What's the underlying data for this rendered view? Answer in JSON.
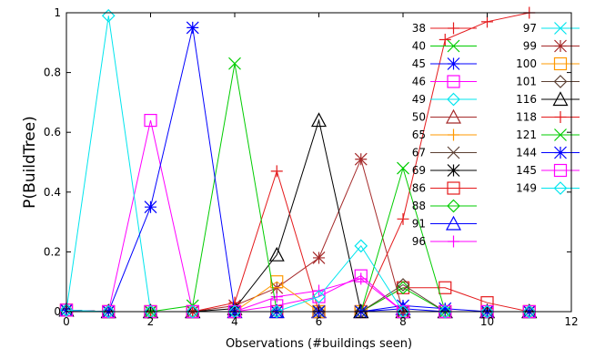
{
  "chart_data": {
    "type": "line",
    "xlabel": "Observations (#buildings seen)",
    "ylabel": "P(BuildTree)",
    "xlim": [
      0,
      12
    ],
    "ylim": [
      0,
      1
    ],
    "x_ticks": [
      "0",
      "2",
      "4",
      "6",
      "8",
      "10",
      "12"
    ],
    "y_ticks": [
      "0",
      "0.2",
      "0.4",
      "0.6",
      "0.8",
      "1"
    ],
    "grid": false,
    "legend_position": "top-right",
    "legend_rows": 13,
    "series": [
      {
        "name": "38",
        "color": "#e41a1c",
        "marker": "plus",
        "points": [
          [
            0,
            0.005
          ],
          [
            1,
            0
          ],
          [
            2,
            0
          ],
          [
            3,
            0
          ],
          [
            4,
            0
          ],
          [
            5,
            0
          ],
          [
            6,
            0
          ],
          [
            7,
            0
          ],
          [
            8,
            0
          ],
          [
            9,
            0
          ],
          [
            10,
            0
          ],
          [
            11,
            0
          ]
        ]
      },
      {
        "name": "40",
        "color": "#00cc00",
        "marker": "cross",
        "points": [
          [
            0,
            0.005
          ],
          [
            1,
            0
          ],
          [
            2,
            0
          ],
          [
            3,
            0
          ],
          [
            4,
            0
          ],
          [
            5,
            0
          ],
          [
            6,
            0
          ],
          [
            7,
            0
          ],
          [
            8,
            0
          ],
          [
            9,
            0
          ],
          [
            10,
            0
          ],
          [
            11,
            0
          ]
        ]
      },
      {
        "name": "45",
        "color": "#0000ff",
        "marker": "star",
        "points": [
          [
            0,
            0.005
          ],
          [
            1,
            0
          ],
          [
            2,
            0
          ],
          [
            3,
            0
          ],
          [
            4,
            0
          ],
          [
            5,
            0
          ],
          [
            6,
            0
          ],
          [
            7,
            0
          ],
          [
            8,
            0
          ],
          [
            9,
            0
          ],
          [
            10,
            0
          ],
          [
            11,
            0
          ]
        ]
      },
      {
        "name": "46",
        "color": "#ff00ff",
        "marker": "square",
        "points": [
          [
            0,
            0.005
          ],
          [
            1,
            0
          ],
          [
            2,
            0.64
          ],
          [
            3,
            0
          ],
          [
            4,
            0
          ],
          [
            5,
            0
          ],
          [
            6,
            0
          ],
          [
            7,
            0
          ],
          [
            8,
            0
          ],
          [
            9,
            0
          ],
          [
            10,
            0
          ],
          [
            11,
            0
          ]
        ]
      },
      {
        "name": "49",
        "color": "#00e5ee",
        "marker": "diamond",
        "points": [
          [
            0,
            0.005
          ],
          [
            1,
            0.99
          ],
          [
            2,
            0
          ],
          [
            3,
            0
          ],
          [
            4,
            0
          ],
          [
            5,
            0
          ],
          [
            6,
            0
          ],
          [
            7,
            0
          ],
          [
            8,
            0
          ],
          [
            9,
            0
          ],
          [
            10,
            0
          ],
          [
            11,
            0
          ]
        ]
      },
      {
        "name": "50",
        "color": "#a52a2a",
        "marker": "triangle",
        "points": [
          [
            0,
            0.005
          ],
          [
            1,
            0
          ],
          [
            2,
            0
          ],
          [
            3,
            0
          ],
          [
            4,
            0
          ],
          [
            5,
            0
          ],
          [
            6,
            0
          ],
          [
            7,
            0
          ],
          [
            8,
            0
          ],
          [
            9,
            0
          ],
          [
            10,
            0
          ],
          [
            11,
            0
          ]
        ]
      },
      {
        "name": "65",
        "color": "#ff9900",
        "marker": "plus",
        "points": [
          [
            0,
            0.005
          ],
          [
            1,
            0
          ],
          [
            2,
            0
          ],
          [
            3,
            0
          ],
          [
            4,
            0
          ],
          [
            5,
            0
          ],
          [
            6,
            0
          ],
          [
            7,
            0
          ],
          [
            8,
            0
          ],
          [
            9,
            0
          ],
          [
            10,
            0
          ],
          [
            11,
            0
          ]
        ]
      },
      {
        "name": "67",
        "color": "#5c4033",
        "marker": "cross",
        "points": [
          [
            0,
            0.005
          ],
          [
            1,
            0
          ],
          [
            2,
            0
          ],
          [
            3,
            0
          ],
          [
            4,
            0
          ],
          [
            5,
            0
          ],
          [
            6,
            0
          ],
          [
            7,
            0
          ],
          [
            8,
            0
          ],
          [
            9,
            0
          ],
          [
            10,
            0
          ],
          [
            11,
            0
          ]
        ]
      },
      {
        "name": "69",
        "color": "#000000",
        "marker": "star",
        "points": [
          [
            0,
            0.005
          ],
          [
            1,
            0
          ],
          [
            2,
            0
          ],
          [
            3,
            0
          ],
          [
            4,
            0
          ],
          [
            5,
            0
          ],
          [
            6,
            0
          ],
          [
            7,
            0
          ],
          [
            8,
            0
          ],
          [
            9,
            0
          ],
          [
            10,
            0
          ],
          [
            11,
            0
          ]
        ]
      },
      {
        "name": "86",
        "color": "#e41a1c",
        "marker": "square",
        "points": [
          [
            0,
            0.005
          ],
          [
            1,
            0
          ],
          [
            2,
            0
          ],
          [
            3,
            0
          ],
          [
            4,
            0
          ],
          [
            5,
            0
          ],
          [
            6,
            0
          ],
          [
            7,
            0
          ],
          [
            8,
            0.08
          ],
          [
            9,
            0.08
          ],
          [
            10,
            0.03
          ],
          [
            11,
            0
          ]
        ]
      },
      {
        "name": "88",
        "color": "#00cc00",
        "marker": "diamond",
        "points": [
          [
            0,
            0.005
          ],
          [
            1,
            0
          ],
          [
            2,
            0
          ],
          [
            3,
            0
          ],
          [
            4,
            0
          ],
          [
            5,
            0
          ],
          [
            6,
            0
          ],
          [
            7,
            0
          ],
          [
            8,
            0.08
          ],
          [
            9,
            0
          ],
          [
            10,
            0
          ],
          [
            11,
            0
          ]
        ]
      },
      {
        "name": "91",
        "color": "#0000ff",
        "marker": "triangle",
        "points": [
          [
            0,
            0.005
          ],
          [
            1,
            0
          ],
          [
            2,
            0
          ],
          [
            3,
            0
          ],
          [
            4,
            0
          ],
          [
            5,
            0
          ],
          [
            6,
            0
          ],
          [
            7,
            0
          ],
          [
            8,
            0.01
          ],
          [
            9,
            0
          ],
          [
            10,
            0
          ],
          [
            11,
            0
          ]
        ]
      },
      {
        "name": "96",
        "color": "#ff00ff",
        "marker": "plus",
        "points": [
          [
            0,
            0.005
          ],
          [
            1,
            0
          ],
          [
            2,
            0
          ],
          [
            3,
            0
          ],
          [
            4,
            0
          ],
          [
            5,
            0.05
          ],
          [
            6,
            0.07
          ],
          [
            7,
            0.11
          ],
          [
            8,
            0
          ],
          [
            9,
            0
          ],
          [
            10,
            0
          ],
          [
            11,
            0
          ]
        ]
      },
      {
        "name": "97",
        "color": "#00e5ee",
        "marker": "cross",
        "points": [
          [
            0,
            0.005
          ],
          [
            1,
            0
          ],
          [
            2,
            0
          ],
          [
            3,
            0
          ],
          [
            4,
            0
          ],
          [
            5,
            0
          ],
          [
            6,
            0
          ],
          [
            7,
            0
          ],
          [
            8,
            0
          ],
          [
            9,
            0
          ],
          [
            10,
            0
          ],
          [
            11,
            0
          ]
        ]
      },
      {
        "name": "99",
        "color": "#a52a2a",
        "marker": "star",
        "points": [
          [
            0,
            0.005
          ],
          [
            1,
            0
          ],
          [
            2,
            0
          ],
          [
            3,
            0
          ],
          [
            4,
            0.02
          ],
          [
            5,
            0.08
          ],
          [
            6,
            0.18
          ],
          [
            7,
            0.51
          ],
          [
            8,
            0
          ],
          [
            9,
            0
          ],
          [
            10,
            0
          ],
          [
            11,
            0
          ]
        ]
      },
      {
        "name": "100",
        "color": "#ff9900",
        "marker": "square",
        "points": [
          [
            0,
            0.005
          ],
          [
            1,
            0
          ],
          [
            2,
            0
          ],
          [
            3,
            0
          ],
          [
            4,
            0
          ],
          [
            5,
            0.1
          ],
          [
            6,
            0
          ],
          [
            7,
            0
          ],
          [
            8,
            0
          ],
          [
            9,
            0
          ],
          [
            10,
            0
          ],
          [
            11,
            0
          ]
        ]
      },
      {
        "name": "101",
        "color": "#5c4033",
        "marker": "diamond",
        "points": [
          [
            0,
            0.005
          ],
          [
            1,
            0
          ],
          [
            2,
            0
          ],
          [
            3,
            0
          ],
          [
            4,
            0
          ],
          [
            5,
            0
          ],
          [
            6,
            0
          ],
          [
            7,
            0
          ],
          [
            8,
            0.09
          ],
          [
            9,
            0
          ],
          [
            10,
            0
          ],
          [
            11,
            0
          ]
        ]
      },
      {
        "name": "116",
        "color": "#000000",
        "marker": "triangle",
        "points": [
          [
            0,
            0.005
          ],
          [
            1,
            0
          ],
          [
            2,
            0
          ],
          [
            3,
            0
          ],
          [
            4,
            0.01
          ],
          [
            5,
            0.19
          ],
          [
            6,
            0.64
          ],
          [
            7,
            0
          ],
          [
            8,
            0
          ],
          [
            9,
            0
          ],
          [
            10,
            0
          ],
          [
            11,
            0
          ]
        ]
      },
      {
        "name": "118",
        "color": "#e41a1c",
        "marker": "plus",
        "points": [
          [
            0,
            0.005
          ],
          [
            1,
            0
          ],
          [
            2,
            0
          ],
          [
            3,
            0
          ],
          [
            4,
            0.03
          ],
          [
            5,
            0.47
          ],
          [
            6,
            0
          ],
          [
            7,
            0
          ],
          [
            8,
            0.31
          ],
          [
            9,
            0.91
          ],
          [
            10,
            0.97
          ],
          [
            11,
            1.0
          ]
        ]
      },
      {
        "name": "121",
        "color": "#00cc00",
        "marker": "cross",
        "points": [
          [
            0,
            0.005
          ],
          [
            1,
            0
          ],
          [
            2,
            0
          ],
          [
            3,
            0.02
          ],
          [
            4,
            0.83
          ],
          [
            5,
            0
          ],
          [
            6,
            0
          ],
          [
            7,
            0
          ],
          [
            8,
            0.48
          ],
          [
            9,
            0
          ],
          [
            10,
            0
          ],
          [
            11,
            0
          ]
        ]
      },
      {
        "name": "144",
        "color": "#0000ff",
        "marker": "star",
        "points": [
          [
            0,
            0.005
          ],
          [
            1,
            0
          ],
          [
            2,
            0.35
          ],
          [
            3,
            0.95
          ],
          [
            4,
            0
          ],
          [
            5,
            0
          ],
          [
            6,
            0
          ],
          [
            7,
            0
          ],
          [
            8,
            0.02
          ],
          [
            9,
            0.01
          ],
          [
            10,
            0
          ],
          [
            11,
            0
          ]
        ]
      },
      {
        "name": "145",
        "color": "#ff00ff",
        "marker": "square",
        "points": [
          [
            0,
            0.005
          ],
          [
            1,
            0
          ],
          [
            2,
            0
          ],
          [
            3,
            0
          ],
          [
            4,
            0
          ],
          [
            5,
            0.02
          ],
          [
            6,
            0.05
          ],
          [
            7,
            0.12
          ],
          [
            8,
            0
          ],
          [
            9,
            0
          ],
          [
            10,
            0
          ],
          [
            11,
            0
          ]
        ]
      },
      {
        "name": "149",
        "color": "#00e5ee",
        "marker": "diamond",
        "points": [
          [
            0,
            0.005
          ],
          [
            1,
            0
          ],
          [
            2,
            0
          ],
          [
            3,
            0
          ],
          [
            4,
            0
          ],
          [
            5,
            0
          ],
          [
            6,
            0.05
          ],
          [
            7,
            0.22
          ],
          [
            8,
            0
          ],
          [
            9,
            0
          ],
          [
            10,
            0
          ],
          [
            11,
            0
          ]
        ]
      }
    ]
  }
}
